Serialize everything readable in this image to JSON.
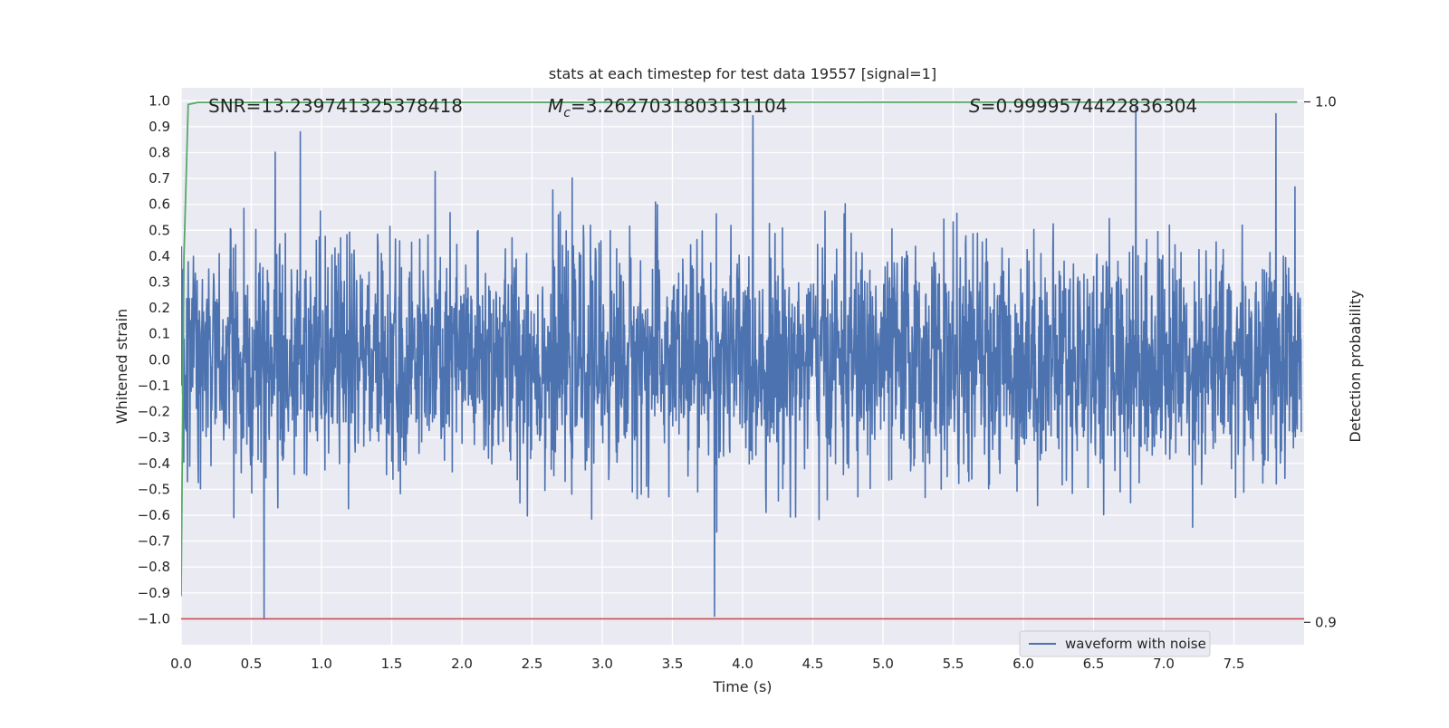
{
  "chart_data": {
    "type": "line",
    "title": "stats at each timestep for test data 19557 [signal=1]",
    "xlabel": "Time (s)",
    "ylabel": "Whitened strain",
    "ylabel_right": "Detection probability",
    "xlim": [
      0.0,
      8.0
    ],
    "ylim": [
      -1.1,
      1.05
    ],
    "ylim_right": [
      0.8957,
      1.0027
    ],
    "x_ticks": [
      "0.0",
      "0.5",
      "1.0",
      "1.5",
      "2.0",
      "2.5",
      "3.0",
      "3.5",
      "4.0",
      "4.5",
      "5.0",
      "5.5",
      "6.0",
      "6.5",
      "7.0",
      "7.5"
    ],
    "y_ticks": [
      "−1.0",
      "−0.9",
      "−0.8",
      "−0.7",
      "−0.6",
      "−0.5",
      "−0.4",
      "−0.3",
      "−0.2",
      "−0.1",
      "0.0",
      "0.1",
      "0.2",
      "0.3",
      "0.4",
      "0.5",
      "0.6",
      "0.7",
      "0.8",
      "0.9",
      "1.0"
    ],
    "y_ticks_right": [
      "0.9",
      "1.0"
    ],
    "grid": true,
    "legend": {
      "placement": "lower-right",
      "entries": [
        "waveform with noise"
      ]
    },
    "annotations": {
      "snr": {
        "label": "SNR",
        "value": "13.239741325378418"
      },
      "mc": {
        "label": "M",
        "sub": "c",
        "value": "3.2627031803131104"
      },
      "s": {
        "label": "S",
        "value": "0.9999574422836304"
      }
    },
    "colors": {
      "waveform": "#4c72b0",
      "probability": "#55a868",
      "threshold": "#c44e52",
      "background": "#eaeaf2"
    },
    "series": [
      {
        "name": "waveform with noise",
        "axis": "left",
        "description_hint": "whitened strain noise, amplitude roughly within -0.5..0.5 with spikes up to about +/-1.0",
        "peaks": [
          {
            "x": 0.59,
            "y": -1.0
          },
          {
            "x": 3.8,
            "y": -0.99
          },
          {
            "x": 6.8,
            "y": 0.98
          },
          {
            "x": 7.8,
            "y": 0.95
          },
          {
            "x": 0.85,
            "y": 0.88
          }
        ]
      },
      {
        "name": "detection probability",
        "axis": "right",
        "x": [
          0.0,
          0.02,
          0.05,
          0.12,
          7.95
        ],
        "y": [
          0.905,
          0.97,
          0.9995,
          0.9999,
          0.99996
        ]
      },
      {
        "name": "threshold",
        "axis": "left",
        "x": [
          0.0,
          8.0
        ],
        "y": [
          -1.0,
          -1.0
        ]
      }
    ]
  }
}
